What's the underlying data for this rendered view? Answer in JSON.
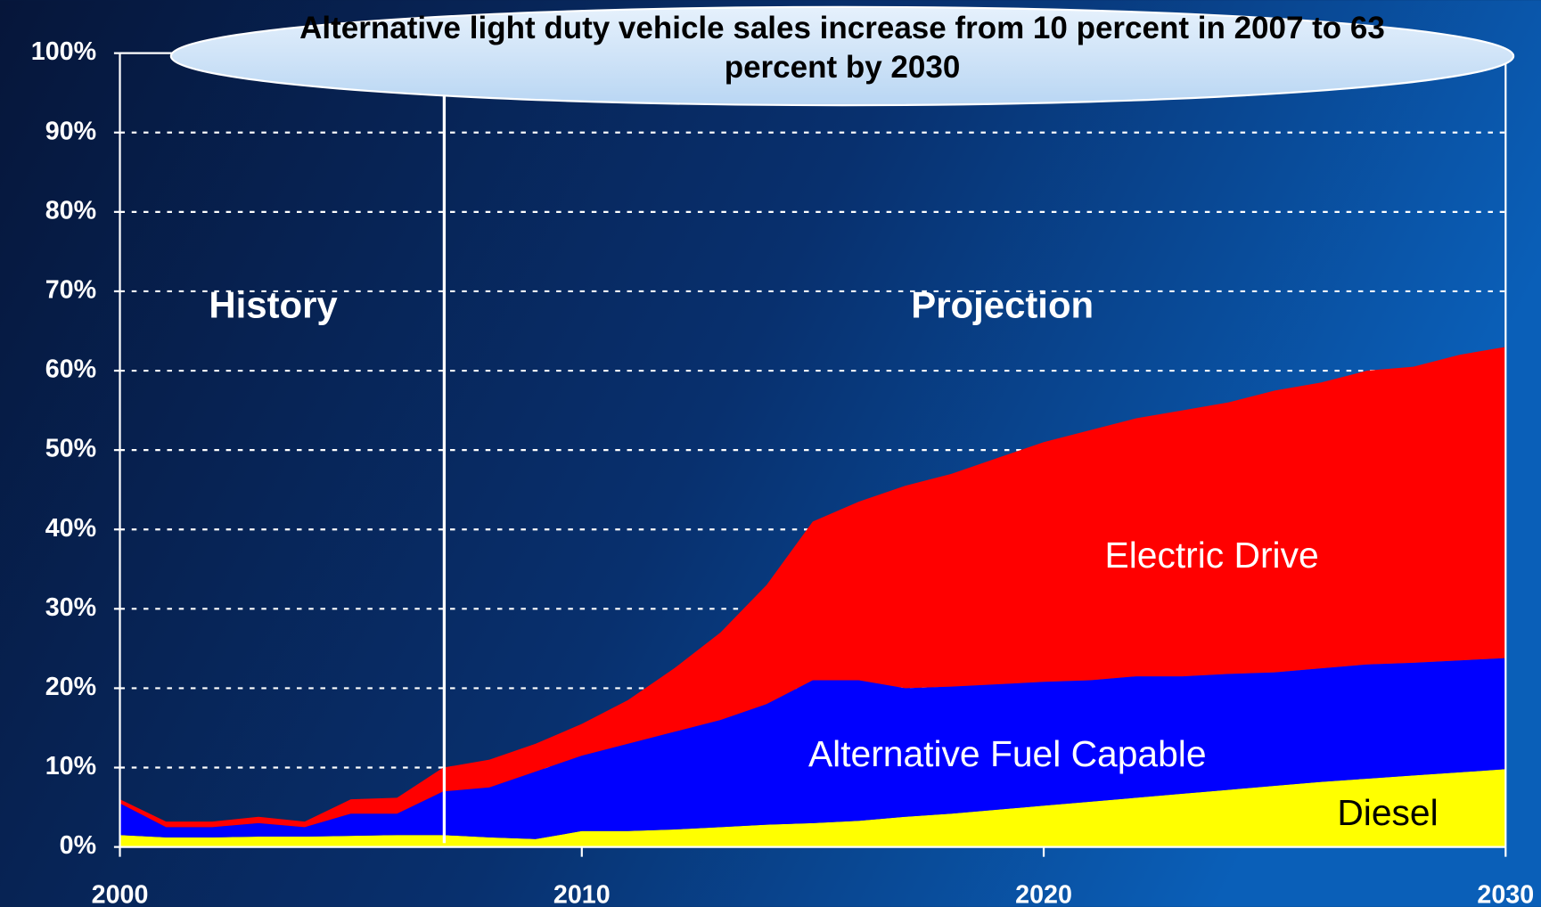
{
  "chart_data": {
    "type": "stacked_area",
    "title": "Alternative light duty vehicle sales increase from 10 percent in 2007 to 63 percent by 2030",
    "annotations": [
      "History",
      "Projection"
    ],
    "x": [
      2000,
      2001,
      2002,
      2003,
      2004,
      2005,
      2006,
      2007,
      2008,
      2009,
      2010,
      2011,
      2012,
      2013,
      2014,
      2015,
      2016,
      2017,
      2018,
      2019,
      2020,
      2021,
      2022,
      2023,
      2024,
      2025,
      2026,
      2027,
      2028,
      2029,
      2030
    ],
    "series": [
      {
        "name": "Diesel",
        "color": "#ffff00",
        "values": [
          1.5,
          1.2,
          1.2,
          1.3,
          1.3,
          1.4,
          1.5,
          1.5,
          1.2,
          1.0,
          2.0,
          2.0,
          2.2,
          2.5,
          2.8,
          3.0,
          3.3,
          3.8,
          4.2,
          4.7,
          5.2,
          5.7,
          6.2,
          6.7,
          7.2,
          7.7,
          8.2,
          8.6,
          9.0,
          9.4,
          9.8
        ]
      },
      {
        "name": "Alternative Fuel Capable",
        "color": "#0000ff",
        "values": [
          4.0,
          1.3,
          1.3,
          1.7,
          1.2,
          2.8,
          2.7,
          5.5,
          6.3,
          8.5,
          9.5,
          11.0,
          12.3,
          13.5,
          15.2,
          18.0,
          17.7,
          16.2,
          16.0,
          15.8,
          15.6,
          15.3,
          15.3,
          14.8,
          14.6,
          14.3,
          14.3,
          14.4,
          14.2,
          14.1,
          14.0
        ]
      },
      {
        "name": "Electric Drive",
        "color": "#ff0000",
        "values": [
          0.5,
          0.7,
          0.7,
          0.8,
          0.7,
          1.8,
          2.0,
          3.0,
          3.5,
          3.5,
          4.0,
          5.5,
          8.0,
          11.0,
          15.0,
          20.0,
          22.5,
          25.5,
          26.8,
          28.5,
          30.2,
          31.5,
          32.5,
          33.5,
          34.2,
          35.5,
          36.0,
          37.0,
          37.3,
          38.5,
          39.2
        ]
      }
    ],
    "xlim": [
      2000,
      2030
    ],
    "xticks": [
      2000,
      2010,
      2020,
      2030
    ],
    "ylim": [
      0,
      100
    ],
    "yticks": [
      {
        "value": 0,
        "label": "0%"
      },
      {
        "value": 10,
        "label": "10%"
      },
      {
        "value": 20,
        "label": "20%"
      },
      {
        "value": 30,
        "label": "30%"
      },
      {
        "value": 40,
        "label": "40%"
      },
      {
        "value": 50,
        "label": "50%"
      },
      {
        "value": 60,
        "label": "60%"
      },
      {
        "value": 70,
        "label": "70%"
      },
      {
        "value": 80,
        "label": "80%"
      },
      {
        "value": 90,
        "label": "90%"
      },
      {
        "value": 100,
        "label": "100%"
      }
    ],
    "grid": true
  }
}
